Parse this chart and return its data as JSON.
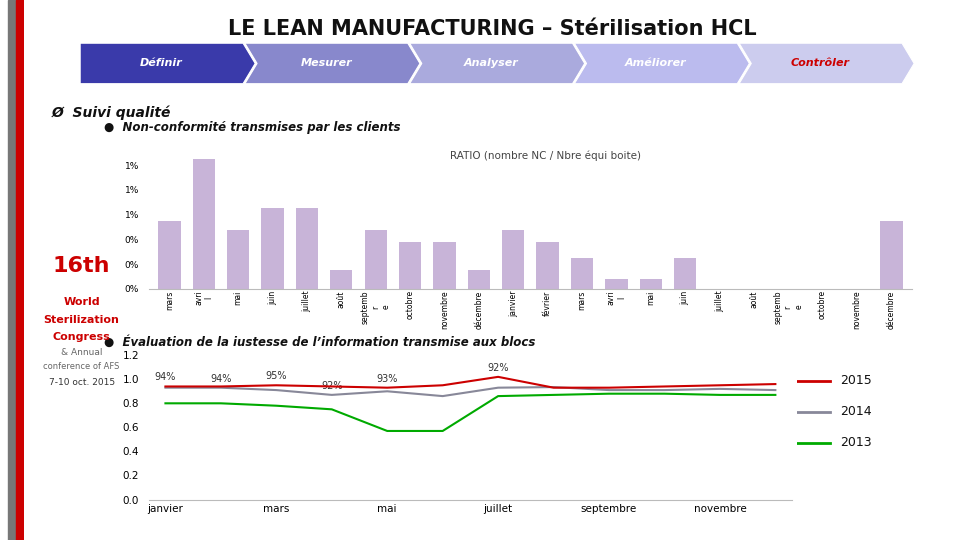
{
  "title": "LE LEAN MANUFACTURING – Stérilisation HCL",
  "nav_steps": [
    "Définir",
    "Mesurer",
    "Analyser",
    "Améliorer",
    "Contrôler"
  ],
  "nav_bg_colors": [
    "#3a3aaa",
    "#8888cc",
    "#aaaadd",
    "#bbbbee",
    "#ccccee"
  ],
  "nav_text_colors": [
    "#ffffff",
    "#ffffff",
    "#ffffff",
    "#ffffff",
    "#cc0000"
  ],
  "section_title": "Ø  Suivi qualité",
  "bullet1": "Non-conformité transmises par les clients",
  "bullet2": "Évaluation de la justesse de l’information transmise aux blocs",
  "bar_title": "RATIO (nombre NC / Nbre équi boite)",
  "bar_labels": [
    "mars",
    "avri\nl",
    "mai",
    "juin",
    "juillet",
    "août",
    "septemb\nr\ne",
    "octobre",
    "novembre",
    "décembre",
    "janvier",
    "février",
    "mars",
    "avri\nl",
    "mai",
    "juin",
    "juillet",
    "août",
    "septemb\nr\ne",
    "octobre",
    "novembre",
    "décembre"
  ],
  "bar_values": [
    0.0055,
    0.0105,
    0.0048,
    0.0065,
    0.0065,
    0.0015,
    0.0048,
    0.0038,
    0.0038,
    0.0015,
    0.0048,
    0.0038,
    0.0025,
    0.0008,
    0.0008,
    0.0025,
    0.0,
    0.0,
    0.0,
    0.0,
    0.0,
    0.0055
  ],
  "bar_color": "#c8b4d8",
  "line_x": [
    0,
    1,
    2,
    3,
    4,
    5,
    6,
    7,
    8,
    9,
    10,
    11
  ],
  "line_display_ticks": [
    0,
    2,
    4,
    6,
    8,
    10
  ],
  "line_display_labels": [
    "janvier",
    "mars",
    "mai",
    "juillet",
    "septembre",
    "novembre"
  ],
  "line_2015": [
    0.94,
    0.94,
    0.95,
    0.94,
    0.93,
    0.95,
    1.02,
    0.93,
    0.93,
    0.94,
    0.95,
    0.96
  ],
  "line_2014": [
    0.93,
    0.93,
    0.91,
    0.87,
    0.9,
    0.86,
    0.93,
    0.935,
    0.91,
    0.91,
    0.92,
    0.91
  ],
  "line_2013": [
    0.8,
    0.8,
    0.78,
    0.75,
    0.57,
    0.57,
    0.86,
    0.87,
    0.88,
    0.88,
    0.87,
    0.87
  ],
  "line_color_2015": "#cc0000",
  "line_color_2014": "#888899",
  "line_color_2013": "#00aa00",
  "line_labels_legend": [
    "2015",
    "2014",
    "2013"
  ],
  "bg_color": "#ffffff",
  "left_gray_color": "#777777",
  "left_red_color": "#cc0000",
  "logo_text_16": "16",
  "logo_text_th": "th",
  "logo_line1": "World",
  "logo_line2": "Sterilization",
  "logo_line3": "Congress",
  "logo_line4": "& Annual",
  "logo_line5": "conference of AFS",
  "logo_line6": "7-10 oct. 2015"
}
